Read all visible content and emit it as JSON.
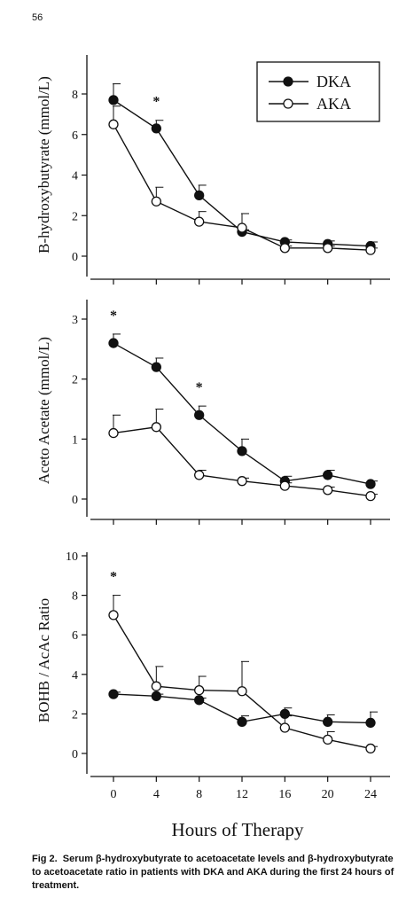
{
  "page_number": "56",
  "caption": {
    "label": "Fig 2.",
    "text": "Serum β-hydroxybutyrate to acetoacetate levels and β-hydroxybutyrate to acetoacetate ratio in patients with DKA and AKA during the first 24 hours of treatment."
  },
  "xlabel": "Hours of Therapy",
  "legend": {
    "entries": [
      "DKA",
      "AKA"
    ],
    "placement": "top-right"
  },
  "colors": {
    "ink": "#111111",
    "open_fill": "#ffffff"
  },
  "chart_data": [
    {
      "type": "line",
      "ylabel": "B-hydroxybutyrate (mmol/L)",
      "x": [
        0,
        4,
        8,
        12,
        16,
        20,
        24
      ],
      "ylim": [
        0,
        8
      ],
      "yticks": [
        0,
        2,
        4,
        6,
        8
      ],
      "series": [
        {
          "name": "DKA",
          "marker": "filled",
          "values": [
            7.7,
            6.3,
            3.0,
            1.2,
            0.7,
            0.6,
            0.5
          ],
          "error": [
            0.8,
            0.4,
            0.5,
            0.1,
            0.1,
            0.15,
            0.2
          ]
        },
        {
          "name": "AKA",
          "marker": "open",
          "values": [
            6.5,
            2.7,
            1.7,
            1.4,
            0.4,
            0.4,
            0.3
          ],
          "error": [
            0.9,
            0.7,
            0.5,
            0.7,
            0.1,
            0.1,
            0.1
          ]
        }
      ],
      "significance": [
        {
          "x": 4,
          "label": "*"
        }
      ]
    },
    {
      "type": "line",
      "ylabel": "Aceto Acetate (mmol/L)",
      "x": [
        0,
        4,
        8,
        12,
        16,
        20,
        24
      ],
      "ylim": [
        0,
        3
      ],
      "yticks": [
        0,
        1,
        2,
        3
      ],
      "series": [
        {
          "name": "DKA",
          "marker": "filled",
          "values": [
            2.6,
            2.2,
            1.4,
            0.8,
            0.3,
            0.4,
            0.25
          ],
          "error": [
            0.15,
            0.15,
            0.15,
            0.2,
            0.08,
            0.08,
            0.05
          ]
        },
        {
          "name": "AKA",
          "marker": "open",
          "values": [
            1.1,
            1.2,
            0.4,
            0.3,
            0.22,
            0.15,
            0.05
          ],
          "error": [
            0.3,
            0.3,
            0.08,
            0.05,
            0.05,
            0.05,
            0.03
          ]
        }
      ],
      "significance": [
        {
          "x": 0,
          "label": "*"
        },
        {
          "x": 8,
          "label": "*"
        }
      ]
    },
    {
      "type": "line",
      "ylabel": "BOHB / AcAc Ratio",
      "x": [
        0,
        4,
        8,
        12,
        16,
        20,
        24
      ],
      "xticks": [
        0,
        4,
        8,
        12,
        16,
        20,
        24
      ],
      "ylim": [
        0,
        10
      ],
      "yticks": [
        0,
        2,
        4,
        6,
        8,
        10
      ],
      "series": [
        {
          "name": "DKA",
          "marker": "filled",
          "values": [
            3.0,
            2.9,
            2.7,
            1.6,
            2.0,
            1.6,
            1.55
          ],
          "error": [
            0.1,
            0.1,
            0.1,
            0.3,
            0.3,
            0.35,
            0.55
          ]
        },
        {
          "name": "AKA",
          "marker": "open",
          "values": [
            7.0,
            3.4,
            3.2,
            3.15,
            1.3,
            0.7,
            0.25
          ],
          "error": [
            1.0,
            1.0,
            0.7,
            1.5,
            0.6,
            0.4,
            0.1
          ]
        }
      ],
      "significance": [
        {
          "x": 0,
          "label": "*"
        }
      ]
    }
  ]
}
